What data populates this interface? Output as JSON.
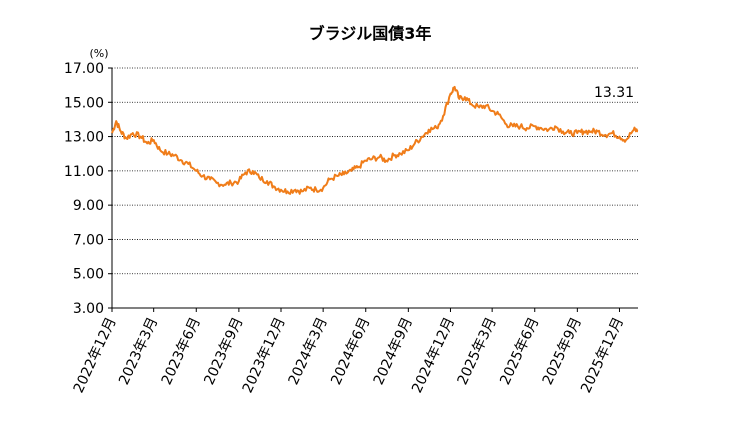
{
  "chart_data": {
    "type": "line",
    "title": "ブラジル国債3年",
    "unit_label": "(%)",
    "ylim": [
      3.0,
      17.0
    ],
    "y_ticks": [
      "3.00",
      "5.00",
      "7.00",
      "9.00",
      "11.00",
      "13.00",
      "15.00",
      "17.00"
    ],
    "x_ticks": [
      "2022年12月",
      "2023年3月",
      "2023年6月",
      "2023年9月",
      "2023年12月",
      "2024年3月",
      "2024年6月",
      "2024年9月",
      "2024年12月",
      "2025年3月",
      "2025年6月",
      "2025年9月",
      "2025年12月"
    ],
    "x_range": [
      "2022-12-01",
      "2026-01-10"
    ],
    "grid": true,
    "series": [
      {
        "color": "#F07D1A",
        "last_value_label": "13.31",
        "x": [
          "2022-12-01",
          "2022-12-10",
          "2022-12-20",
          "2023-01-01",
          "2023-01-15",
          "2023-02-01",
          "2023-02-15",
          "2023-03-01",
          "2023-03-15",
          "2023-04-01",
          "2023-04-15",
          "2023-05-01",
          "2023-05-15",
          "2023-06-01",
          "2023-06-15",
          "2023-07-01",
          "2023-07-15",
          "2023-08-01",
          "2023-08-15",
          "2023-09-01",
          "2023-09-15",
          "2023-10-01",
          "2023-10-15",
          "2023-11-01",
          "2023-11-15",
          "2023-12-01",
          "2023-12-15",
          "2024-01-01",
          "2024-01-15",
          "2024-02-01",
          "2024-02-15",
          "2024-03-01",
          "2024-03-15",
          "2024-04-01",
          "2024-04-15",
          "2024-05-01",
          "2024-05-15",
          "2024-06-01",
          "2024-06-15",
          "2024-07-01",
          "2024-07-15",
          "2024-08-01",
          "2024-08-15",
          "2024-09-01",
          "2024-09-15",
          "2024-10-01",
          "2024-10-15",
          "2024-11-01",
          "2024-11-15",
          "2024-12-01",
          "2024-12-10",
          "2024-12-20",
          "2025-01-01",
          "2025-01-15",
          "2025-02-01",
          "2025-02-15",
          "2025-03-01",
          "2025-03-15",
          "2025-04-01",
          "2025-04-15",
          "2025-05-01",
          "2025-05-15",
          "2025-06-01",
          "2025-06-15",
          "2025-07-01",
          "2025-07-15",
          "2025-08-01",
          "2025-08-15",
          "2025-09-01",
          "2025-09-15",
          "2025-10-01",
          "2025-10-15",
          "2025-11-01",
          "2025-11-15",
          "2025-12-01",
          "2025-12-15",
          "2026-01-01",
          "2026-01-10"
        ],
        "y": [
          13.2,
          13.9,
          13.3,
          12.9,
          13.2,
          13.0,
          12.6,
          12.8,
          12.2,
          12.0,
          11.9,
          11.6,
          11.4,
          11.0,
          10.7,
          10.5,
          10.3,
          10.2,
          10.3,
          10.4,
          10.9,
          11.0,
          10.6,
          10.4,
          10.1,
          9.9,
          9.8,
          9.9,
          9.8,
          10.0,
          9.9,
          10.0,
          10.5,
          10.7,
          10.8,
          11.0,
          11.2,
          11.6,
          11.7,
          11.8,
          11.6,
          11.9,
          12.0,
          12.2,
          12.6,
          13.0,
          13.4,
          13.5,
          14.2,
          15.5,
          15.9,
          15.2,
          15.3,
          14.9,
          14.7,
          14.8,
          14.5,
          14.3,
          13.7,
          13.6,
          13.6,
          13.5,
          13.6,
          13.5,
          13.4,
          13.6,
          13.3,
          13.2,
          13.2,
          13.3,
          13.3,
          13.3,
          13.1,
          13.2,
          13.0,
          12.8,
          13.4,
          13.31
        ]
      }
    ]
  }
}
